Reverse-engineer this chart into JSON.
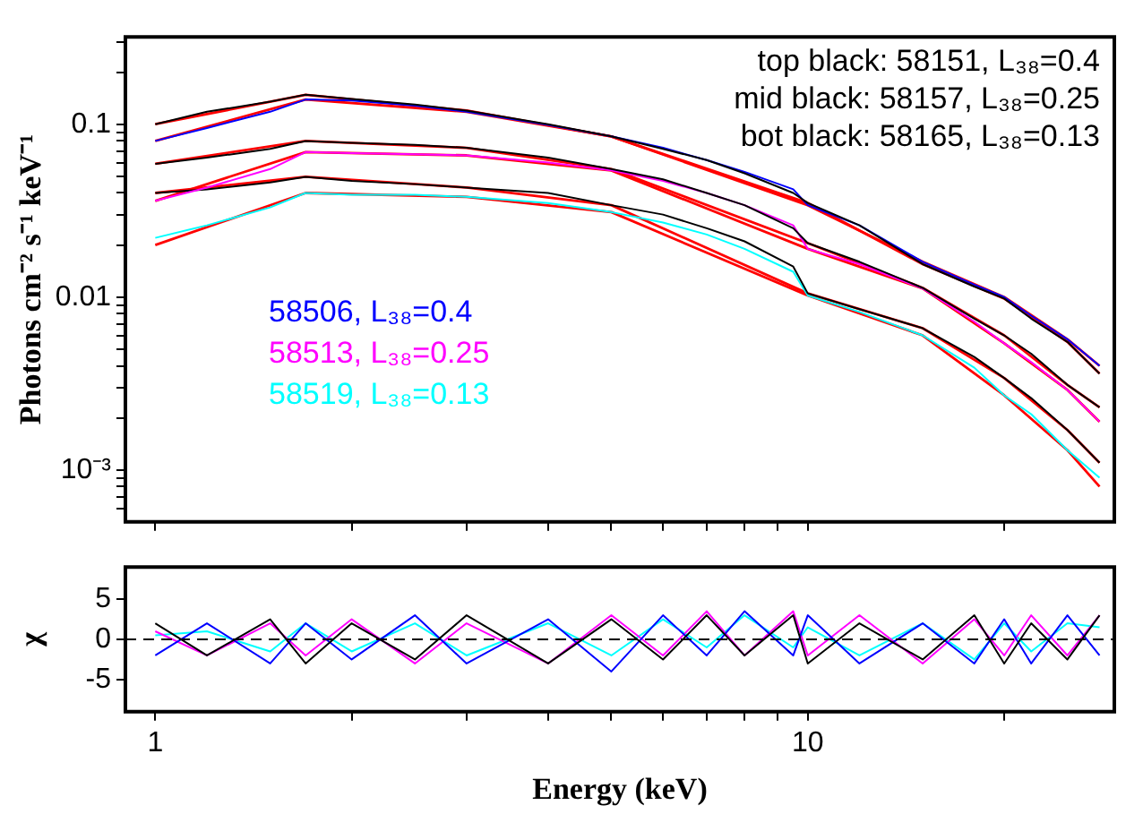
{
  "chart_data": [
    {
      "type": "line",
      "ylabel": "Photons cm⁻² s⁻¹ keV⁻¹",
      "log": "xy",
      "grid": false,
      "marker": "none",
      "tick_labels": "y",
      "annotations": [
        "top black: 58151, L₃₈=0.4",
        "mid black: 58157, L₃₈=0.25",
        "bot black: 58165, L₃₈=0.13"
      ],
      "xlim": [
        0.9,
        29.5
      ],
      "ylim": [
        0.0005,
        0.32
      ],
      "xticks": [
        {
          "value": 1,
          "label": null
        },
        {
          "value": 2,
          "label": null
        },
        {
          "value": 3,
          "label": null
        },
        {
          "value": 4,
          "label": null
        },
        {
          "value": 5,
          "label": null
        },
        {
          "value": 6,
          "label": null
        },
        {
          "value": 7,
          "label": null
        },
        {
          "value": 8,
          "label": null
        },
        {
          "value": 9,
          "label": null
        },
        {
          "value": 10,
          "label": null
        },
        {
          "value": 20,
          "label": null
        }
      ],
      "yticks": [
        {
          "value": 0.0006,
          "label": null
        },
        {
          "value": 0.0007,
          "label": null
        },
        {
          "value": 0.0008,
          "label": null
        },
        {
          "value": 0.0009,
          "label": null
        },
        {
          "value": 0.001,
          "label": "10⁻³"
        },
        {
          "value": 0.002,
          "label": null
        },
        {
          "value": 0.003,
          "label": null
        },
        {
          "value": 0.004,
          "label": null
        },
        {
          "value": 0.005,
          "label": null
        },
        {
          "value": 0.006,
          "label": null
        },
        {
          "value": 0.007,
          "label": null
        },
        {
          "value": 0.008,
          "label": null
        },
        {
          "value": 0.009,
          "label": null
        },
        0.01,
        {
          "value": 0.02,
          "label": null
        },
        {
          "value": 0.03,
          "label": null
        },
        {
          "value": 0.04,
          "label": null
        },
        {
          "value": 0.05,
          "label": null
        },
        {
          "value": 0.06,
          "label": null
        },
        {
          "value": 0.07,
          "label": null
        },
        {
          "value": 0.08,
          "label": null
        },
        {
          "value": 0.09,
          "label": null
        },
        0.1,
        {
          "value": 0.2,
          "label": null
        },
        {
          "value": 0.3,
          "label": null
        }
      ],
      "x": [
        1,
        1.2,
        1.5,
        1.7,
        2,
        2.5,
        3,
        4,
        5,
        6,
        7,
        8,
        9.5,
        10,
        12,
        15,
        18,
        20,
        22,
        25,
        28
      ],
      "series": [
        {
          "color": "#000000",
          "values": [
            0.1,
            0.118,
            0.135,
            0.148,
            0.14,
            0.13,
            0.12,
            0.1,
            0.085,
            0.072,
            0.062,
            0.052,
            0.04,
            0.035,
            0.026,
            0.0155,
            0.0115,
            0.0098,
            0.0075,
            0.0055,
            0.0036
          ]
        },
        {
          "name": "58506, L₃₈=0.4",
          "color": "#0000ff",
          "values": [
            0.08,
            0.095,
            0.118,
            0.139,
            0.137,
            0.128,
            0.118,
            0.099,
            0.085,
            0.073,
            0.062,
            0.053,
            0.042,
            0.034,
            0.026,
            0.016,
            0.0118,
            0.01,
            0.0078,
            0.0057,
            0.004
          ]
        },
        {
          "color": "#000000",
          "values": [
            0.059,
            0.064,
            0.072,
            0.08,
            0.078,
            0.076,
            0.073,
            0.064,
            0.055,
            0.048,
            0.04,
            0.034,
            0.025,
            0.0205,
            0.016,
            0.0113,
            0.0075,
            0.006,
            0.0047,
            0.0031,
            0.0023
          ]
        },
        {
          "name": "58513, L₃₈=0.25",
          "color": "#ff00ff",
          "values": [
            0.036,
            0.043,
            0.055,
            0.069,
            0.068,
            0.067,
            0.066,
            0.06,
            0.054,
            0.047,
            0.04,
            0.034,
            0.026,
            0.019,
            0.0155,
            0.0112,
            0.0072,
            0.0054,
            0.0042,
            0.0029,
            0.0019
          ]
        },
        {
          "color": "#000000",
          "values": [
            0.04,
            0.042,
            0.046,
            0.0496,
            0.047,
            0.045,
            0.043,
            0.04,
            0.034,
            0.03,
            0.025,
            0.021,
            0.015,
            0.0105,
            0.0085,
            0.0066,
            0.0045,
            0.0034,
            0.0026,
            0.0017,
            0.0011
          ]
        },
        {
          "name": "58519, L₃₈=0.13",
          "color": "#00ffff",
          "values": [
            0.022,
            0.026,
            0.033,
            0.04,
            0.039,
            0.039,
            0.038,
            0.035,
            0.031,
            0.027,
            0.023,
            0.019,
            0.014,
            0.0102,
            0.0082,
            0.006,
            0.0039,
            0.0027,
            0.0021,
            0.0013,
            0.0009
          ]
        },
        {
          "color": "#ff0000",
          "x": [
            1,
            1.7,
            3,
            5,
            10,
            15,
            20,
            25,
            28
          ],
          "values": [
            0.1,
            0.148,
            0.12,
            0.085,
            0.035,
            0.0155,
            0.0098,
            0.0055,
            0.0036
          ]
        },
        {
          "color": "#ff0000",
          "x": [
            1,
            1.7,
            3,
            5,
            10,
            15,
            20,
            25,
            28
          ],
          "values": [
            0.08,
            0.139,
            0.118,
            0.085,
            0.034,
            0.016,
            0.01,
            0.0057,
            0.004
          ]
        },
        {
          "color": "#ff0000",
          "x": [
            1,
            1.7,
            3,
            5,
            10,
            15,
            20,
            25,
            28
          ],
          "values": [
            0.059,
            0.08,
            0.073,
            0.055,
            0.0205,
            0.0113,
            0.006,
            0.0031,
            0.0023
          ]
        },
        {
          "color": "#ff0000",
          "x": [
            1,
            1.7,
            3,
            5,
            10,
            15,
            20,
            25,
            28
          ],
          "values": [
            0.036,
            0.069,
            0.066,
            0.054,
            0.019,
            0.0112,
            0.0054,
            0.0029,
            0.0019
          ]
        },
        {
          "color": "#ff0000",
          "x": [
            1,
            1.7,
            3,
            5,
            10,
            15,
            20,
            25,
            28
          ],
          "values": [
            0.04,
            0.0496,
            0.043,
            0.034,
            0.0105,
            0.0066,
            0.0034,
            0.0017,
            0.0011
          ]
        },
        {
          "color": "#ff0000",
          "x": [
            1,
            1.7,
            3,
            5,
            10,
            15,
            20,
            25,
            28
          ],
          "values": [
            0.02,
            0.04,
            0.038,
            0.031,
            0.0102,
            0.006,
            0.0027,
            0.0013,
            0.0008
          ]
        }
      ]
    },
    {
      "type": "line",
      "xlabel": "Energy (keV)",
      "ylabel": "χ",
      "log": "x",
      "grid": false,
      "marker": "none",
      "xlim": [
        0.9,
        29.5
      ],
      "ylim": [
        -9,
        9
      ],
      "xticks": [
        {
          "value": 1,
          "label": "1"
        },
        {
          "value": 2,
          "label": null
        },
        {
          "value": 3,
          "label": null
        },
        {
          "value": 4,
          "label": null
        },
        {
          "value": 5,
          "label": null
        },
        {
          "value": 6,
          "label": null
        },
        {
          "value": 7,
          "label": null
        },
        {
          "value": 8,
          "label": null
        },
        {
          "value": 9,
          "label": null
        },
        {
          "value": 10,
          "label": "10"
        },
        {
          "value": 20,
          "label": null
        }
      ],
      "yticks": [
        -5,
        0,
        5
      ],
      "x": [
        1,
        1.2,
        1.5,
        1.7,
        2,
        2.5,
        3,
        4,
        5,
        6,
        7,
        8,
        9.5,
        10,
        12,
        15,
        18,
        20,
        22,
        25,
        28
      ],
      "ref_lines": [
        {
          "axis": "y",
          "value": 0,
          "color": "#000000",
          "line_style": "dashed"
        }
      ],
      "series": [
        {
          "color": "#000000",
          "values": [
            2,
            -2,
            2.5,
            -3,
            2,
            -2.5,
            3,
            -3,
            2.5,
            -2.5,
            3,
            -2,
            3,
            -3,
            2,
            -2.5,
            3,
            -3,
            2,
            -2.5,
            3
          ]
        },
        {
          "color": "#0000ff",
          "values": [
            -2,
            2,
            -3,
            2,
            -2.5,
            3,
            -3,
            2.5,
            -4,
            3,
            -2,
            3.5,
            -2,
            3,
            -3,
            2,
            -3,
            2.5,
            -3,
            3,
            -2
          ]
        },
        {
          "color": "#ff00ff",
          "values": [
            1,
            -2,
            2,
            -2,
            2.5,
            -3,
            2,
            -3,
            3,
            -2,
            3.5,
            -2,
            3.5,
            -2,
            3,
            -3,
            2.5,
            -2,
            3,
            -2,
            3
          ]
        },
        {
          "color": "#00ffff",
          "values": [
            0.5,
            1,
            -1.5,
            2,
            -1.5,
            2,
            -2,
            2,
            -2,
            2.5,
            -1,
            3,
            -1,
            1.5,
            -2,
            2,
            -2.5,
            2,
            -1.5,
            2,
            1.5
          ]
        }
      ]
    }
  ]
}
